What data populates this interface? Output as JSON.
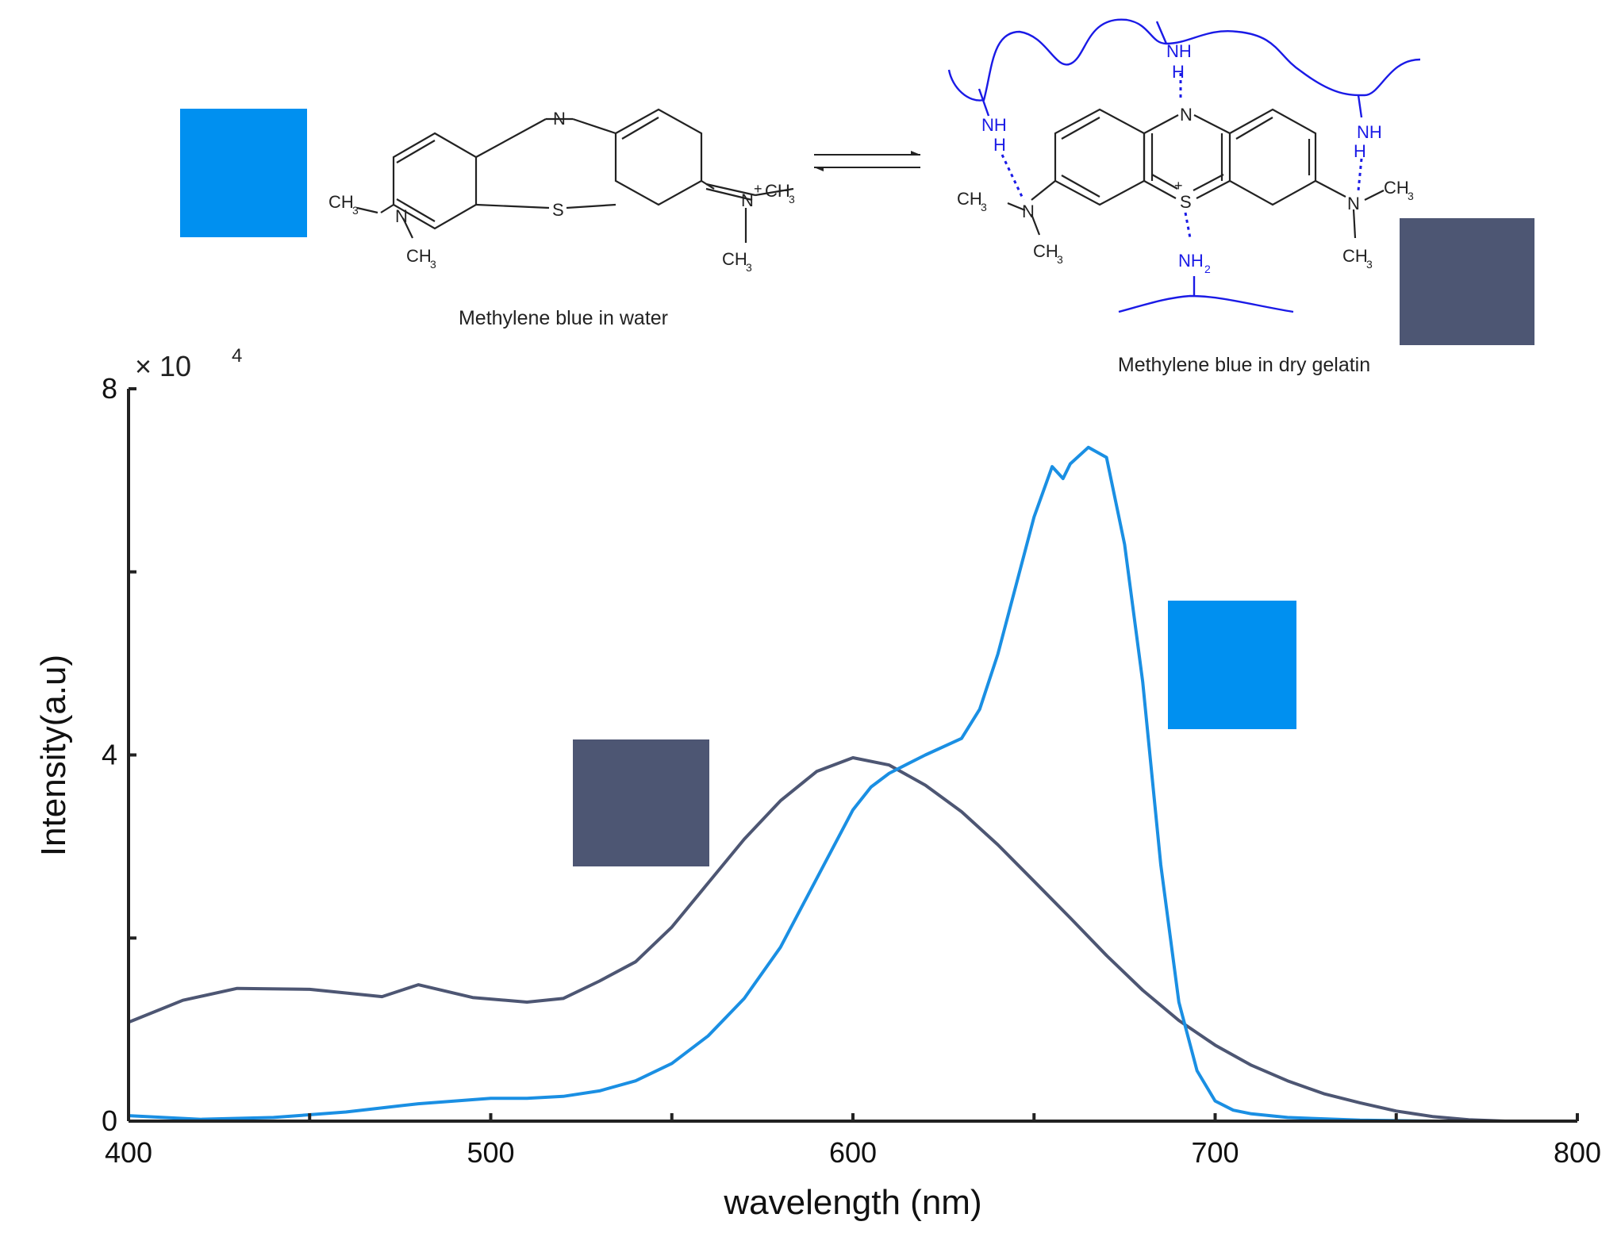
{
  "scheme": {
    "left_label": "Methylene blue in water",
    "right_label": "Methylene blue in dry gelatin",
    "water_color": "#0090f0",
    "gelatin_color": "#4d5673",
    "gelatin_bond_color": "#1a1ae6",
    "atoms": {
      "n_ring": "N",
      "s_ring": "S",
      "n_dim": "N",
      "ch3": "CH",
      "sub3": "3",
      "plus": "+",
      "nh": "NH",
      "h": "H",
      "nh2": "NH",
      "sub2": "2"
    }
  },
  "chart_data": {
    "type": "line",
    "xlabel": "wavelength (nm)",
    "ylabel": "Intensity(a.u)",
    "y_multiplier": "× 10",
    "y_multiplier_exp": "4",
    "xlim": [
      400,
      800
    ],
    "ylim": [
      0,
      80000
    ],
    "xticks": [
      400,
      500,
      600,
      700,
      800
    ],
    "xtick_minor": [
      450,
      550,
      650,
      750
    ],
    "yticks": [
      0,
      40000,
      80000
    ],
    "ytick_labels": [
      "0",
      "4",
      "8"
    ],
    "ytick_minor": [
      20000,
      60000
    ],
    "grid": false,
    "series": [
      {
        "color": "#4d5673",
        "x": [
          400,
          415,
          430,
          450,
          470,
          480,
          495,
          510,
          520,
          530,
          540,
          550,
          560,
          570,
          580,
          590,
          600,
          610,
          620,
          630,
          640,
          650,
          660,
          670,
          680,
          690,
          700,
          710,
          720,
          730,
          740,
          750,
          760,
          770,
          780,
          790,
          800
        ],
        "y": [
          10800,
          13200,
          14500,
          14400,
          13600,
          14900,
          13500,
          13000,
          13400,
          15300,
          17400,
          21200,
          26000,
          30800,
          35000,
          38200,
          39700,
          38900,
          36700,
          33800,
          30200,
          26200,
          22200,
          18100,
          14300,
          11000,
          8300,
          6100,
          4400,
          3000,
          2000,
          1100,
          500,
          150,
          0,
          0,
          0
        ]
      },
      {
        "color": "#1a8fe3",
        "x": [
          400,
          420,
          440,
          460,
          480,
          500,
          510,
          520,
          530,
          540,
          550,
          560,
          570,
          580,
          590,
          600,
          605,
          610,
          620,
          630,
          635,
          640,
          650,
          655,
          658,
          660,
          665,
          670,
          675,
          680,
          685,
          690,
          695,
          700,
          705,
          710,
          720,
          740,
          760,
          780,
          800
        ],
        "y": [
          600,
          200,
          400,
          1000,
          1900,
          2500,
          2500,
          2700,
          3300,
          4400,
          6300,
          9300,
          13400,
          19000,
          26500,
          34000,
          36500,
          38000,
          40000,
          41800,
          45000,
          51000,
          66000,
          71500,
          70200,
          71800,
          73600,
          72500,
          63000,
          48000,
          28000,
          13000,
          5500,
          2200,
          1200,
          800,
          400,
          100,
          0,
          0,
          0
        ]
      }
    ]
  }
}
